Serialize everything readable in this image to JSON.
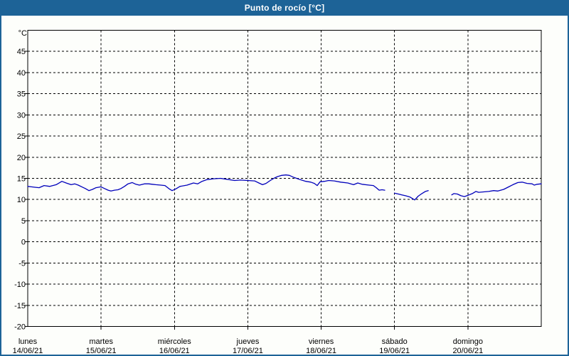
{
  "window": {
    "title": "Punto de rocío [°C]"
  },
  "colors": {
    "frame": "#1d6397",
    "title_text": "#ffffff",
    "background": "#fdfefb",
    "plot_border": "#000000",
    "grid": "#000000",
    "axis_text": "#000000",
    "line": "#0000bb"
  },
  "chart_data": {
    "type": "line",
    "title": "Punto de rocío [°C]",
    "y_unit_label": "°C",
    "ylim": [
      -20,
      50
    ],
    "ytick_step": 5,
    "ytick_labels": [
      45,
      40,
      35,
      30,
      25,
      20,
      15,
      10,
      5,
      0,
      -5,
      -10,
      -15,
      -20
    ],
    "grid": "dashed",
    "legend": "none",
    "x_axis": {
      "unit": "days_from_start",
      "range_days": 7,
      "days": [
        {
          "label": "lunes",
          "date": "14/06/21"
        },
        {
          "label": "martes",
          "date": "15/06/21"
        },
        {
          "label": "miércoles",
          "date": "16/06/21"
        },
        {
          "label": "jueves",
          "date": "17/06/21"
        },
        {
          "label": "viernes",
          "date": "18/06/21"
        },
        {
          "label": "sábado",
          "date": "19/06/21"
        },
        {
          "label": "domingo",
          "date": "20/06/21"
        }
      ]
    },
    "series": [
      {
        "name": "Punto de rocío",
        "color": "#0000bb",
        "unit": "°C",
        "segments": [
          [
            [
              0.0,
              13.1
            ],
            [
              0.048,
              13.0
            ],
            [
              0.097,
              12.9
            ],
            [
              0.155,
              12.8
            ],
            [
              0.223,
              13.3
            ],
            [
              0.301,
              13.1
            ],
            [
              0.388,
              13.5
            ],
            [
              0.465,
              14.3
            ],
            [
              0.524,
              13.9
            ],
            [
              0.591,
              13.5
            ],
            [
              0.64,
              13.7
            ],
            [
              0.688,
              13.4
            ],
            [
              0.737,
              13.0
            ],
            [
              0.785,
              12.6
            ],
            [
              0.834,
              12.1
            ],
            [
              0.882,
              12.4
            ],
            [
              0.931,
              12.8
            ],
            [
              0.999,
              13.0
            ],
            [
              1.047,
              12.6
            ],
            [
              1.096,
              12.2
            ],
            [
              1.134,
              12.0
            ],
            [
              1.183,
              12.2
            ],
            [
              1.231,
              12.3
            ],
            [
              1.27,
              12.6
            ],
            [
              1.319,
              13.1
            ],
            [
              1.367,
              13.7
            ],
            [
              1.425,
              14.0
            ],
            [
              1.474,
              13.6
            ],
            [
              1.522,
              13.4
            ],
            [
              1.59,
              13.7
            ],
            [
              1.648,
              13.7
            ],
            [
              1.697,
              13.6
            ],
            [
              1.745,
              13.5
            ],
            [
              1.813,
              13.4
            ],
            [
              1.871,
              13.3
            ],
            [
              1.93,
              12.5
            ],
            [
              1.968,
              12.1
            ],
            [
              2.017,
              12.5
            ],
            [
              2.075,
              13.1
            ],
            [
              2.172,
              13.4
            ],
            [
              2.259,
              13.9
            ],
            [
              2.317,
              13.7
            ],
            [
              2.375,
              14.3
            ],
            [
              2.443,
              14.7
            ],
            [
              2.53,
              14.9
            ],
            [
              2.627,
              15.0
            ],
            [
              2.705,
              14.8
            ],
            [
              2.821,
              14.5
            ],
            [
              2.899,
              14.6
            ],
            [
              2.996,
              14.5
            ],
            [
              3.093,
              14.4
            ],
            [
              3.151,
              13.9
            ],
            [
              3.2,
              13.5
            ],
            [
              3.248,
              13.8
            ],
            [
              3.306,
              14.5
            ],
            [
              3.355,
              15.0
            ],
            [
              3.403,
              15.4
            ],
            [
              3.461,
              15.7
            ],
            [
              3.519,
              15.8
            ],
            [
              3.567,
              15.7
            ],
            [
              3.616,
              15.3
            ],
            [
              3.665,
              15.0
            ],
            [
              3.713,
              14.7
            ],
            [
              3.791,
              14.3
            ],
            [
              3.859,
              14.1
            ],
            [
              3.907,
              13.8
            ],
            [
              3.946,
              13.3
            ],
            [
              3.985,
              14.2
            ],
            [
              4.043,
              14.3
            ],
            [
              4.101,
              14.5
            ],
            [
              4.179,
              14.4
            ],
            [
              4.266,
              14.1
            ],
            [
              4.363,
              13.9
            ],
            [
              4.441,
              13.5
            ],
            [
              4.499,
              13.9
            ],
            [
              4.557,
              13.6
            ],
            [
              4.654,
              13.4
            ],
            [
              4.712,
              13.3
            ],
            [
              4.751,
              12.8
            ],
            [
              4.79,
              12.2
            ],
            [
              4.829,
              12.3
            ],
            [
              4.867,
              12.2
            ]
          ],
          [
            [
              4.998,
              11.5
            ],
            [
              5.052,
              11.3
            ],
            [
              5.1,
              11.1
            ],
            [
              5.149,
              10.9
            ],
            [
              5.207,
              10.6
            ],
            [
              5.275,
              9.9
            ],
            [
              5.323,
              10.8
            ],
            [
              5.372,
              11.4
            ],
            [
              5.42,
              11.9
            ],
            [
              5.459,
              12.1
            ]
          ],
          [
            [
              5.779,
              11.1
            ],
            [
              5.808,
              11.4
            ],
            [
              5.856,
              11.3
            ],
            [
              5.905,
              10.9
            ],
            [
              5.953,
              10.7
            ],
            [
              6.002,
              11.0
            ],
            [
              6.06,
              11.4
            ],
            [
              6.108,
              11.9
            ],
            [
              6.147,
              11.7
            ],
            [
              6.215,
              11.8
            ],
            [
              6.283,
              11.9
            ],
            [
              6.351,
              12.1
            ],
            [
              6.409,
              12.0
            ],
            [
              6.487,
              12.4
            ],
            [
              6.545,
              12.9
            ],
            [
              6.613,
              13.5
            ],
            [
              6.681,
              14.0
            ],
            [
              6.739,
              14.1
            ],
            [
              6.807,
              13.8
            ],
            [
              6.875,
              13.7
            ],
            [
              6.904,
              13.4
            ],
            [
              6.943,
              13.6
            ],
            [
              7.0,
              13.7
            ]
          ]
        ]
      }
    ]
  }
}
